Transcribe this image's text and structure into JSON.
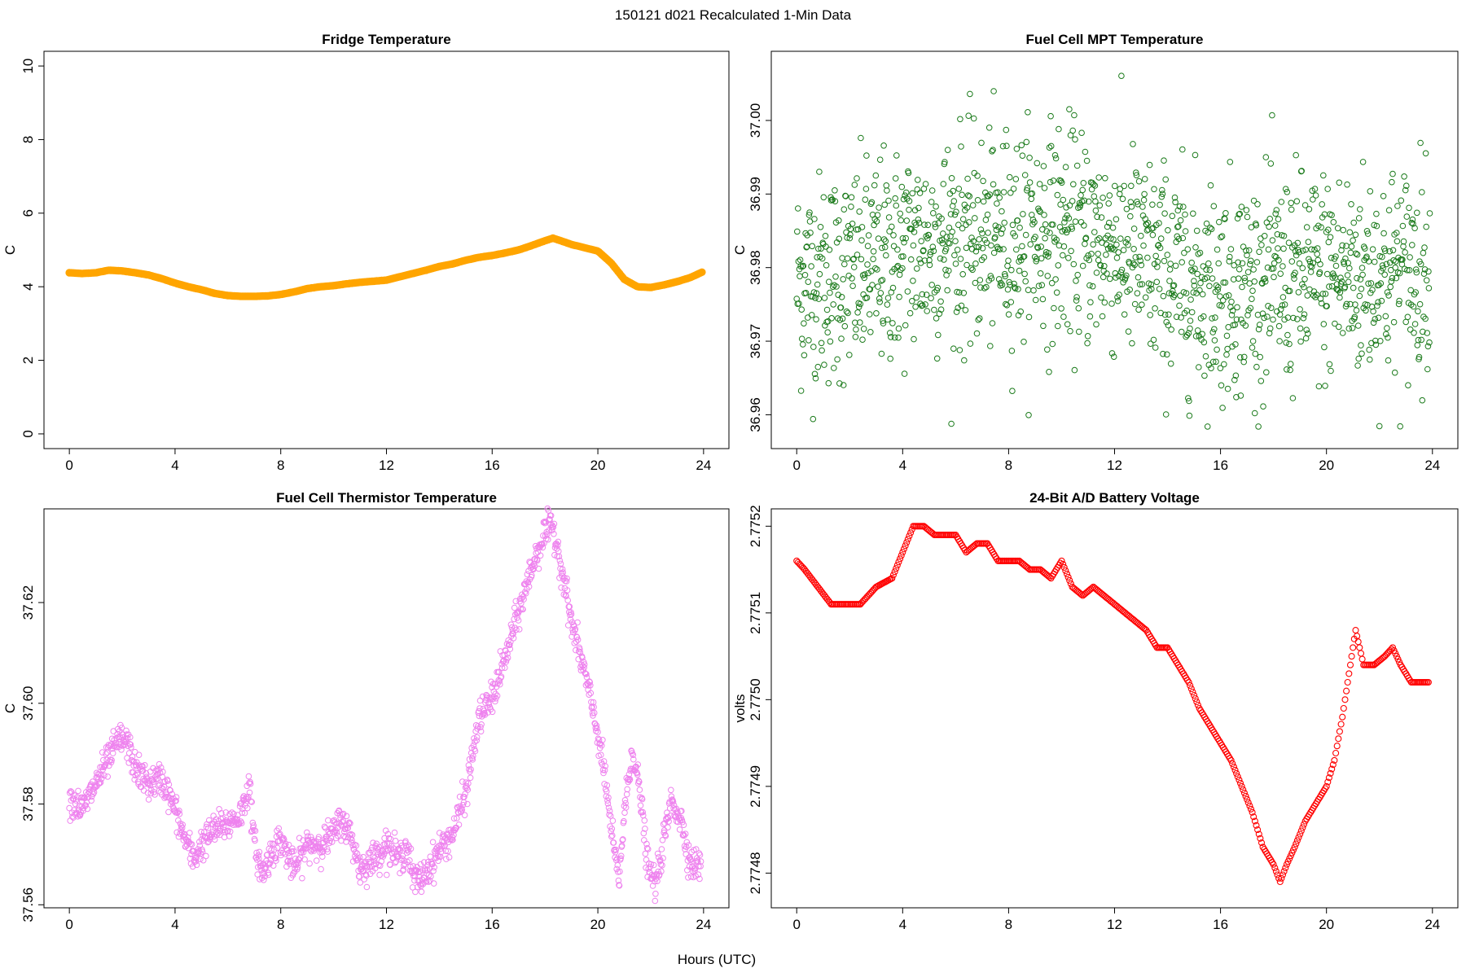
{
  "figure": {
    "main_title": "150121   d021   Recalculated 1-Min Data",
    "shared_xlabel": "Hours (UTC)"
  },
  "chart_data": [
    {
      "type": "line",
      "title": "Fridge Temperature",
      "xlabel": "",
      "ylabel": "C",
      "xlim": [
        -0.96,
        24.96
      ],
      "ylim": [
        -0.4,
        10.4
      ],
      "xticks": [
        0,
        4,
        8,
        12,
        16,
        20,
        24
      ],
      "yticks": [
        0,
        2,
        4,
        6,
        8,
        10
      ],
      "ytick_labels": [
        "0",
        "2",
        "4",
        "6",
        "8",
        "10"
      ],
      "color": "#ffa500",
      "marker": "filled-thick-line",
      "series": [
        {
          "name": "Fridge Temperature",
          "x": [
            0,
            0.5,
            1,
            1.5,
            2,
            2.5,
            3,
            3.5,
            4,
            4.5,
            5,
            5.5,
            6,
            6.5,
            7,
            7.5,
            8,
            8.5,
            9,
            9.5,
            10,
            10.5,
            11,
            11.5,
            12,
            12.5,
            13,
            13.5,
            14,
            14.5,
            15,
            15.5,
            16,
            16.5,
            17,
            17.5,
            18,
            18.3,
            18.6,
            19,
            19.5,
            20,
            20.5,
            21,
            21.5,
            22,
            22.5,
            23,
            23.5,
            23.95
          ],
          "values": [
            4.38,
            4.36,
            4.38,
            4.45,
            4.43,
            4.38,
            4.32,
            4.22,
            4.1,
            4.0,
            3.92,
            3.82,
            3.76,
            3.74,
            3.74,
            3.75,
            3.79,
            3.86,
            3.95,
            4.0,
            4.03,
            4.08,
            4.12,
            4.15,
            4.18,
            4.27,
            4.36,
            4.45,
            4.55,
            4.62,
            4.72,
            4.8,
            4.85,
            4.92,
            5.0,
            5.12,
            5.25,
            5.32,
            5.25,
            5.15,
            5.06,
            4.97,
            4.65,
            4.2,
            4.0,
            3.98,
            4.05,
            4.14,
            4.25,
            4.4
          ]
        }
      ]
    },
    {
      "type": "scatter",
      "title": "Fuel Cell MPT Temperature",
      "xlabel": "",
      "ylabel": "C",
      "xlim": [
        -0.96,
        24.96
      ],
      "ylim": [
        36.9554,
        37.0094
      ],
      "xticks": [
        0,
        4,
        8,
        12,
        16,
        20,
        24
      ],
      "yticks": [
        36.96,
        36.97,
        36.98,
        36.99,
        37.0
      ],
      "ytick_labels": [
        "36.96",
        "36.97",
        "36.98",
        "36.99",
        "37.00"
      ],
      "color": "#1a7a1a",
      "marker": "open-circle",
      "series": [
        {
          "name": "Fuel Cell MPT Temperature",
          "x_start": 0,
          "x_end": 23.9,
          "n_points": 1434,
          "trend_x": [
            0,
            2,
            4,
            6,
            8,
            10,
            12,
            14,
            16,
            18,
            20,
            22,
            24
          ],
          "trend_values": [
            36.978,
            36.979,
            36.982,
            36.984,
            36.984,
            36.985,
            36.983,
            36.979,
            36.977,
            36.978,
            36.979,
            36.979,
            36.98
          ],
          "spread": 0.0072,
          "ymin": 36.9584,
          "ymax": 37.0066
        }
      ]
    },
    {
      "type": "scatter",
      "title": "Fuel Cell Thermistor Temperature",
      "xlabel": "",
      "ylabel": "C",
      "xlim": [
        -0.96,
        24.96
      ],
      "ylim": [
        37.5594,
        37.6386
      ],
      "xticks": [
        0,
        4,
        8,
        12,
        16,
        20,
        24
      ],
      "yticks": [
        37.56,
        37.58,
        37.6,
        37.62
      ],
      "ytick_labels": [
        "37.56",
        "37.58",
        "37.60",
        "37.62"
      ],
      "color": "#ee82ee",
      "marker": "open-circle",
      "series": [
        {
          "name": "Fuel Cell Thermistor Temperature",
          "x_start": 0,
          "x_end": 23.9,
          "n_points": 1434,
          "x": [
            0,
            0.5,
            1,
            1.5,
            1.9,
            2.2,
            2.5,
            3,
            3.5,
            4,
            4.3,
            4.7,
            5,
            5.5,
            6,
            6.5,
            6.8,
            7,
            7.3,
            7.7,
            8,
            8.5,
            9,
            9.5,
            10,
            10.3,
            10.7,
            11,
            11.5,
            12,
            12.5,
            12.8,
            13,
            13.3,
            13.7,
            14,
            14.5,
            15,
            15.5,
            16,
            16.5,
            17,
            17.5,
            18,
            18.3,
            18.7,
            19,
            19.5,
            20,
            20.3,
            20.6,
            20.8,
            21,
            21.3,
            21.6,
            21.9,
            22.2,
            22.5,
            22.8,
            23.2,
            23.5,
            23.9
          ],
          "values": [
            37.581,
            37.579,
            37.584,
            37.589,
            37.593,
            37.592,
            37.587,
            37.584,
            37.585,
            37.579,
            37.574,
            37.569,
            37.572,
            37.575,
            37.576,
            37.578,
            37.584,
            37.572,
            37.566,
            37.571,
            37.573,
            37.567,
            37.572,
            37.572,
            37.574,
            37.577,
            37.573,
            37.567,
            37.569,
            37.572,
            37.569,
            37.572,
            37.565,
            37.565,
            37.568,
            37.571,
            37.574,
            37.582,
            37.597,
            37.601,
            37.609,
            37.618,
            37.627,
            37.634,
            37.635,
            37.625,
            37.616,
            37.606,
            37.594,
            37.584,
            37.571,
            37.565,
            37.578,
            37.591,
            37.582,
            37.567,
            37.564,
            37.573,
            37.581,
            37.576,
            37.568,
            37.568
          ]
        }
      ]
    },
    {
      "type": "line",
      "title": "24-Bit A/D Battery Voltage",
      "xlabel": "",
      "ylabel": "volts",
      "xlim": [
        -0.96,
        24.96
      ],
      "ylim": [
        2.77476,
        2.77522
      ],
      "xticks": [
        0,
        4,
        8,
        12,
        16,
        20,
        24
      ],
      "yticks": [
        2.7748,
        2.7749,
        2.775,
        2.7751,
        2.7752
      ],
      "ytick_labels": [
        "2.7748",
        "2.7749",
        "2.7750",
        "2.7751",
        "2.7752"
      ],
      "color": "#ff0000",
      "marker": "open-circle-dense",
      "series": [
        {
          "name": "24-Bit A/D Battery Voltage",
          "x": [
            0,
            0.3,
            0.8,
            1.3,
            1.6,
            2.0,
            2.4,
            3.0,
            3.6,
            4.0,
            4.4,
            4.8,
            5.2,
            5.6,
            6.0,
            6.4,
            6.8,
            7.2,
            7.6,
            8.0,
            8.4,
            8.8,
            9.2,
            9.6,
            10.0,
            10.4,
            10.8,
            11.2,
            11.6,
            12.0,
            12.4,
            12.8,
            13.2,
            13.6,
            14.0,
            14.4,
            14.8,
            15.2,
            15.6,
            16.0,
            16.4,
            16.8,
            17.2,
            17.6,
            18.0,
            18.25,
            18.5,
            18.8,
            19.2,
            19.6,
            20.0,
            20.3,
            20.6,
            20.9,
            21.1,
            21.4,
            21.8,
            22.2,
            22.5,
            22.8,
            23.2,
            23.6,
            23.9
          ],
          "values": [
            2.77516,
            2.77515,
            2.77513,
            2.77511,
            2.77511,
            2.77511,
            2.77511,
            2.77513,
            2.77514,
            2.77517,
            2.7752,
            2.7752,
            2.77519,
            2.77519,
            2.77519,
            2.77517,
            2.77518,
            2.77518,
            2.77516,
            2.77516,
            2.77516,
            2.77515,
            2.77515,
            2.77514,
            2.77516,
            2.77513,
            2.77512,
            2.77513,
            2.77512,
            2.77511,
            2.7751,
            2.77509,
            2.77508,
            2.77506,
            2.77506,
            2.77504,
            2.77502,
            2.77499,
            2.77497,
            2.77495,
            2.77493,
            2.7749,
            2.77487,
            2.77483,
            2.77481,
            2.77479,
            2.77481,
            2.77483,
            2.77486,
            2.77488,
            2.7749,
            2.77493,
            2.77498,
            2.77504,
            2.77508,
            2.77504,
            2.77504,
            2.77505,
            2.77506,
            2.77504,
            2.77502,
            2.77502,
            2.77502
          ]
        }
      ]
    }
  ]
}
